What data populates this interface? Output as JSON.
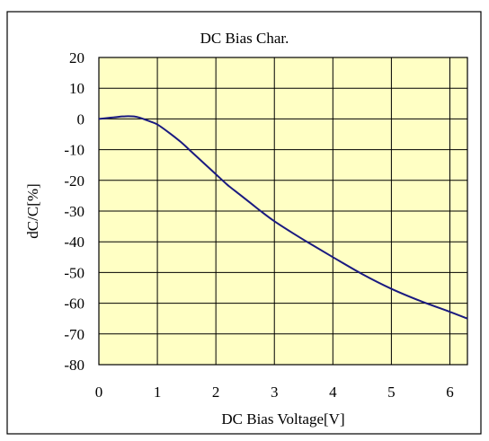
{
  "chart_data": {
    "type": "line",
    "title": "DC Bias Char.",
    "xlabel": "DC Bias Voltage[V]",
    "ylabel": "dC/C[%]",
    "xlim": [
      0,
      6.3
    ],
    "ylim": [
      -80,
      20
    ],
    "x_ticks": [
      0,
      1,
      2,
      3,
      4,
      5,
      6
    ],
    "y_ticks": [
      20,
      10,
      0,
      -10,
      -20,
      -30,
      -40,
      -50,
      -60,
      -70,
      -80
    ],
    "x_tick_labels": [
      "0",
      "1",
      "2",
      "3",
      "4",
      "5",
      "6"
    ],
    "y_tick_labels": [
      "20",
      "10",
      "0",
      "-10",
      "-20",
      "-30",
      "-40",
      "-50",
      "-60",
      "-70",
      "-80"
    ],
    "grid": true,
    "legend": "none",
    "colors": {
      "plot_background": "#FFFFC4",
      "line": "#1A1A80",
      "grid": "#000000"
    },
    "series": [
      {
        "x": [
          0,
          0.1,
          0.2,
          0.3,
          0.4,
          0.5,
          0.6,
          0.7,
          0.8,
          0.9,
          1.0,
          1.2,
          1.4,
          1.6,
          1.8,
          2.0,
          2.2,
          2.4,
          2.6,
          2.8,
          3.0,
          3.3,
          3.6,
          4.0,
          4.5,
          5.0,
          5.5,
          6.0,
          6.3
        ],
        "y": [
          0,
          0.2,
          0.4,
          0.6,
          0.8,
          0.9,
          0.8,
          0.4,
          -0.3,
          -1.0,
          -1.8,
          -4.5,
          -7.5,
          -11.0,
          -14.5,
          -18.0,
          -21.5,
          -24.5,
          -27.5,
          -30.5,
          -33.3,
          -37.0,
          -40.5,
          -45.0,
          -50.5,
          -55.3,
          -59.3,
          -62.8,
          -65.0
        ]
      }
    ]
  }
}
